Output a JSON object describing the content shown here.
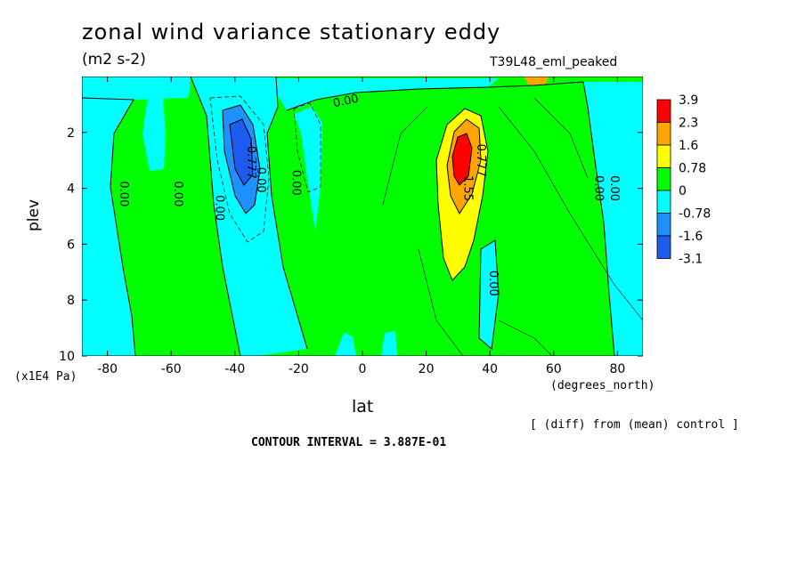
{
  "colors": {
    "band_neg3": "#1e5cf0",
    "band_neg2": "#1e90ff",
    "band_neg1": "#00ffff",
    "band_pos1": "#00ff00",
    "band_pos2": "#ffff00",
    "band_pos3": "#ffa500",
    "band_pos4": "#ff0000"
  },
  "chart_data": {
    "type": "heatmap",
    "title": "zonal wind variance stationary eddy",
    "units": "(m2 s-2)",
    "run_label": "T39L48_eml_peaked",
    "xlabel": "lat",
    "x_units": "(degrees_north)",
    "ylabel": "plev",
    "y_units": "(x1E4 Pa)",
    "xlim": [
      -88,
      88
    ],
    "ylim": [
      10,
      0
    ],
    "x_ticks": [
      "-80",
      "-60",
      "-40",
      "-20",
      "0",
      "20",
      "40",
      "60",
      "80"
    ],
    "y_ticks": [
      "2",
      "4",
      "6",
      "8",
      "10"
    ],
    "colorbar_labels": [
      "3.9",
      "2.3",
      "1.6",
      "0.78",
      "0",
      "-0.78",
      "-1.6",
      "-3.1"
    ],
    "contour_labels": [
      "0.00",
      "0.00",
      "0.00",
      "0.00",
      "0.00",
      "0.00",
      "0.00",
      "0.00",
      "0.00",
      "-0.777",
      "1.55",
      "0.777",
      "0.00"
    ],
    "features": [
      {
        "name": "negative centre",
        "lat": -38,
        "plev": 2.7,
        "value": -3.1
      },
      {
        "name": "positive centre",
        "lat": 30,
        "plev": 3.0,
        "value": 3.9
      }
    ],
    "note": "[ (diff) from (mean) control ]",
    "contour_interval": "CONTOUR INTERVAL = 3.887E-01"
  }
}
